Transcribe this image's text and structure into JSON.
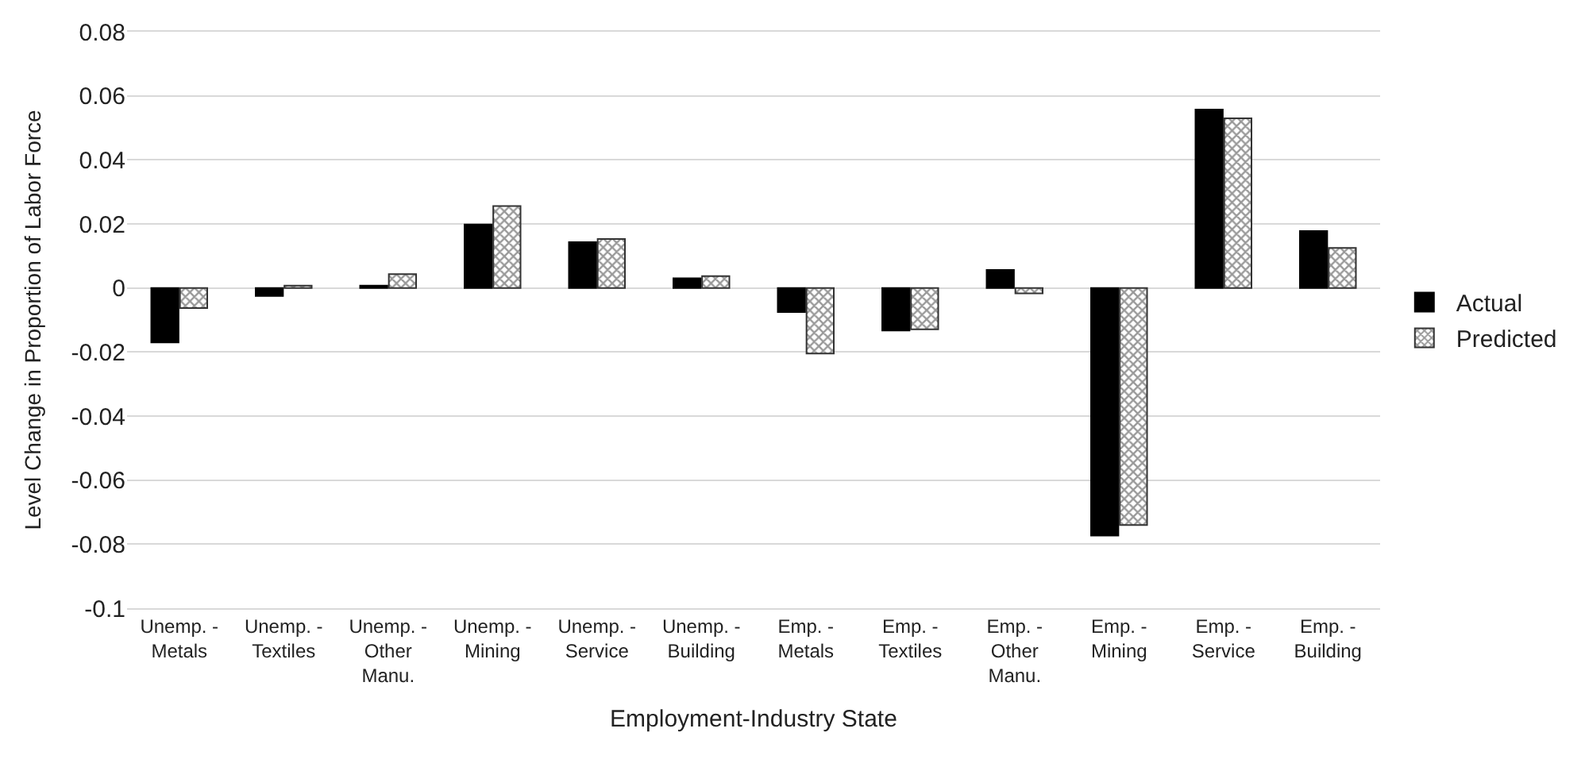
{
  "chart_data": {
    "type": "bar",
    "xlabel": "Employment-Industry State",
    "ylabel": "Level Change in Proportion of Labor Force",
    "categories": [
      "Unemp. - Metals",
      "Unemp. - Textiles",
      "Unemp. - Other Manu.",
      "Unemp. - Mining",
      "Unemp. - Service",
      "Unemp. - Building",
      "Emp. - Metals",
      "Emp. - Textiles",
      "Emp. - Other Manu.",
      "Emp. - Mining",
      "Emp. - Service",
      "Emp. - Building"
    ],
    "series": [
      {
        "name": "Actual",
        "color": "#000000",
        "values": [
          -0.017,
          -0.0025,
          0.0007,
          0.0198,
          0.0143,
          0.003,
          -0.0075,
          -0.0133,
          0.0056,
          -0.0773,
          0.0557,
          0.0178
        ]
      },
      {
        "name": "Predicted",
        "color": "#333333",
        "values": [
          -0.0063,
          0.0007,
          0.0043,
          0.0256,
          0.0153,
          0.0037,
          -0.0205,
          -0.0129,
          -0.0017,
          -0.074,
          0.053,
          0.0125
        ]
      }
    ],
    "ylim": [
      -0.1,
      0.08
    ],
    "yticks": [
      {
        "value": -0.1,
        "label": "-0.1"
      },
      {
        "value": -0.08,
        "label": "-0.08"
      },
      {
        "value": -0.06,
        "label": "-0.06"
      },
      {
        "value": -0.04,
        "label": "-0.04"
      },
      {
        "value": -0.02,
        "label": "-0.02"
      },
      0,
      0.02,
      0.04,
      0.06,
      0.08
    ],
    "grid": "y",
    "legend": "right"
  }
}
